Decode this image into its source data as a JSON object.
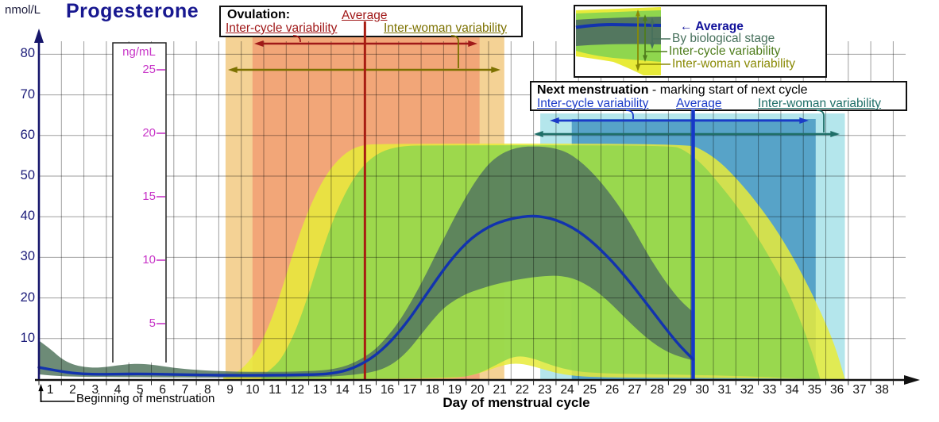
{
  "title": "Progesterone",
  "y_axis_unit": "nmol/L",
  "x_axis_label": "Day of menstrual cycle",
  "beginning_label": "Beginning of menstruation",
  "ovulation_box": {
    "title": "Ovulation:",
    "average_label": "Average",
    "inter_cycle_label": "Inter-cycle variability",
    "inter_woman_label": "Inter-woman variability"
  },
  "next_box": {
    "title": "Next menstruation",
    "subtitle": " - marking start of next cycle",
    "inter_cycle_label": "Inter-cycle variability",
    "average_label": "Average",
    "inter_woman_label": "Inter-woman variability"
  },
  "legend": {
    "items": [
      {
        "label": "Average",
        "color": "#10109A"
      },
      {
        "label": "By biological stage",
        "color": "#47705C"
      },
      {
        "label": "Inter-cycle variability",
        "color": "#4F7D1C"
      },
      {
        "label": "Inter-woman variability",
        "color": "#8A8A06"
      }
    ],
    "average_arrow": "← "
  },
  "colors": {
    "grid": "rgba(0,0,0,0.38)",
    "axis_x": "#111111",
    "axis_y": "#16166B",
    "y_tick_text": "#1A1A78",
    "ng_text": "#C837C8",
    "ovulation_outer_band": "#F4D295",
    "ovulation_inner_band": "#F2A678",
    "next_outer_band": "#B4E6EC",
    "next_inner_band": "#57A3C8",
    "inter_woman_band": "#E8EB39",
    "inter_cycle_band": "#8FD64E",
    "stage_band": "#53775F",
    "average_line": "#1233AE",
    "ovulation_line": "#A81D12",
    "ovulation_text": "#A01818",
    "ovulation_woman_text": "#7C7100",
    "next_line": "#1638C8",
    "next_text_blue": "#1B3BC8",
    "next_text_teal": "#1F6F68"
  },
  "chart_data": {
    "type": "area",
    "title": "Progesterone",
    "x_axis": {
      "label": "Day of menstrual cycle",
      "min": 0.5,
      "max": 38.5,
      "tick_days": [
        1,
        2,
        3,
        4,
        5,
        6,
        7,
        8,
        9,
        10,
        11,
        12,
        13,
        14,
        15,
        16,
        17,
        18,
        19,
        20,
        21,
        22,
        23,
        24,
        25,
        26,
        27,
        28,
        29,
        30,
        31,
        32,
        33,
        34,
        35,
        36,
        37,
        38
      ]
    },
    "y_axis": {
      "unit": "nmol/L",
      "ticks": [
        10,
        20,
        30,
        40,
        50,
        60,
        70,
        80
      ],
      "max": 80
    },
    "y_axis_secondary": {
      "unit": "ng/mL",
      "ticks": [
        5,
        10,
        15,
        20,
        25
      ]
    },
    "series": {
      "average": [
        [
          0.5,
          2.9
        ],
        [
          1,
          2.4
        ],
        [
          1.5,
          1.9
        ],
        [
          2,
          1.5
        ],
        [
          2.5,
          1.3
        ],
        [
          3,
          1.2
        ],
        [
          4,
          1.25
        ],
        [
          5,
          1.3
        ],
        [
          6,
          1.2
        ],
        [
          7,
          1.1
        ],
        [
          8,
          1
        ],
        [
          9,
          0.95
        ],
        [
          10,
          0.95
        ],
        [
          11,
          1
        ],
        [
          12,
          1.05
        ],
        [
          13,
          1.2
        ],
        [
          13.5,
          1.4
        ],
        [
          14,
          1.9
        ],
        [
          14.5,
          2.8
        ],
        [
          15,
          4.2
        ],
        [
          15.5,
          6
        ],
        [
          16,
          8.5
        ],
        [
          16.5,
          11.5
        ],
        [
          17,
          15
        ],
        [
          17.5,
          19
        ],
        [
          18,
          23
        ],
        [
          18.5,
          27
        ],
        [
          19,
          30.5
        ],
        [
          19.5,
          33.5
        ],
        [
          20,
          35.8
        ],
        [
          20.5,
          37.5
        ],
        [
          21,
          38.7
        ],
        [
          21.5,
          39.5
        ],
        [
          22,
          40
        ],
        [
          22.5,
          40.2
        ],
        [
          23,
          39.9
        ],
        [
          23.5,
          39.2
        ],
        [
          24,
          38
        ],
        [
          24.5,
          36.4
        ],
        [
          25,
          34.3
        ],
        [
          25.5,
          31.8
        ],
        [
          26,
          29
        ],
        [
          26.5,
          25.8
        ],
        [
          27,
          22.4
        ],
        [
          27.5,
          18.8
        ],
        [
          28,
          15.2
        ],
        [
          28.5,
          11.6
        ],
        [
          29,
          8.2
        ],
        [
          29.6,
          4.9
        ]
      ],
      "by_biological_stage": {
        "upper": [
          [
            0.5,
            9.5
          ],
          [
            1,
            7.5
          ],
          [
            1.5,
            5
          ],
          [
            2,
            3.6
          ],
          [
            2.5,
            3
          ],
          [
            3,
            2.8
          ],
          [
            3.5,
            3
          ],
          [
            4,
            3.4
          ],
          [
            4.5,
            3.7
          ],
          [
            5,
            3.8
          ],
          [
            5.5,
            3.6
          ],
          [
            6,
            3.2
          ],
          [
            6.5,
            2.8
          ],
          [
            7,
            2.5
          ],
          [
            7.5,
            2.3
          ],
          [
            8,
            2.1
          ],
          [
            9,
            1.9
          ],
          [
            10,
            1.8
          ],
          [
            11,
            1.8
          ],
          [
            12,
            1.9
          ],
          [
            13,
            2.1
          ],
          [
            13.5,
            2.4
          ],
          [
            14,
            3
          ],
          [
            14.5,
            4
          ],
          [
            15,
            5.5
          ],
          [
            15.5,
            7.5
          ],
          [
            16,
            10.5
          ],
          [
            16.5,
            14
          ],
          [
            17,
            18.5
          ],
          [
            17.5,
            23.5
          ],
          [
            18,
            29
          ],
          [
            18.5,
            34.5
          ],
          [
            19,
            40
          ],
          [
            19.5,
            45
          ],
          [
            20,
            49.5
          ],
          [
            20.5,
            53
          ],
          [
            21,
            55.3
          ],
          [
            21.5,
            56.6
          ],
          [
            22,
            57.2
          ],
          [
            22.5,
            57.3
          ],
          [
            23,
            57.2
          ],
          [
            23.5,
            56.8
          ],
          [
            24,
            55.8
          ],
          [
            24.5,
            54
          ],
          [
            25,
            51.5
          ],
          [
            25.5,
            48.5
          ],
          [
            26,
            45
          ],
          [
            26.5,
            41
          ],
          [
            27,
            36.5
          ],
          [
            27.5,
            31.5
          ],
          [
            28,
            27
          ],
          [
            28.5,
            23
          ],
          [
            29,
            19.5
          ],
          [
            29.6,
            16.5
          ]
        ],
        "lower": [
          [
            0.5,
            1.2
          ],
          [
            1,
            0.9
          ],
          [
            2,
            0.6
          ],
          [
            4,
            0.5
          ],
          [
            6,
            0.45
          ],
          [
            8,
            0.4
          ],
          [
            10,
            0.4
          ],
          [
            12,
            0.45
          ],
          [
            13,
            0.5
          ],
          [
            14,
            0.8
          ],
          [
            15,
            1.4
          ],
          [
            15.5,
            2
          ],
          [
            16,
            3
          ],
          [
            16.5,
            4.8
          ],
          [
            17,
            7.5
          ],
          [
            17.5,
            11
          ],
          [
            18,
            14.5
          ],
          [
            18.5,
            17.5
          ],
          [
            19,
            19.5
          ],
          [
            19.5,
            21
          ],
          [
            20,
            22
          ],
          [
            20.5,
            22.9
          ],
          [
            21,
            23.6
          ],
          [
            21.5,
            24.2
          ],
          [
            22,
            24.7
          ],
          [
            22.5,
            25.1
          ],
          [
            23,
            25.4
          ],
          [
            23.5,
            25.5
          ],
          [
            24,
            25.2
          ],
          [
            24.5,
            24.3
          ],
          [
            25,
            22.8
          ],
          [
            25.5,
            20.8
          ],
          [
            26,
            18.3
          ],
          [
            26.5,
            15.5
          ],
          [
            27,
            12.8
          ],
          [
            27.5,
            10.3
          ],
          [
            28,
            8.2
          ],
          [
            28.5,
            6.6
          ],
          [
            29,
            5.5
          ],
          [
            29.6,
            4.6
          ]
        ]
      },
      "inter_cycle_variability": {
        "upper": [
          [
            10.4,
            0.8
          ],
          [
            11,
            3
          ],
          [
            11.5,
            7
          ],
          [
            12,
            13
          ],
          [
            12.5,
            21
          ],
          [
            13,
            30
          ],
          [
            13.5,
            38
          ],
          [
            14,
            44.5
          ],
          [
            14.5,
            49.5
          ],
          [
            15,
            53
          ],
          [
            15.5,
            55.3
          ],
          [
            16,
            56.6
          ],
          [
            16.7,
            57.4
          ],
          [
            17.5,
            57.6
          ],
          [
            28.6,
            57.6
          ],
          [
            29.2,
            56.5
          ],
          [
            30,
            53
          ],
          [
            30.7,
            48.5
          ],
          [
            31.5,
            43
          ],
          [
            32.3,
            36.5
          ],
          [
            33,
            30
          ],
          [
            33.7,
            23
          ],
          [
            34.3,
            15.5
          ],
          [
            34.8,
            8
          ],
          [
            35.1,
            3
          ],
          [
            35.25,
            0
          ]
        ],
        "lower": [
          [
            10.4,
            0
          ],
          [
            19,
            0.2
          ],
          [
            20,
            1.2
          ],
          [
            20.8,
            3.4
          ],
          [
            21.5,
            5.4
          ],
          [
            22,
            5.7
          ],
          [
            22.6,
            4.9
          ],
          [
            23.4,
            3.2
          ],
          [
            24.2,
            2.1
          ],
          [
            25,
            1.6
          ],
          [
            26.5,
            1.3
          ],
          [
            28,
            1.2
          ],
          [
            30,
            1
          ],
          [
            32,
            0.7
          ],
          [
            33.5,
            0.4
          ],
          [
            35.25,
            0
          ]
        ]
      },
      "inter_woman_variability": {
        "upper": [
          [
            8.7,
            0.5
          ],
          [
            9.3,
            1.5
          ],
          [
            9.8,
            4
          ],
          [
            10.3,
            8
          ],
          [
            10.8,
            14
          ],
          [
            11.3,
            22
          ],
          [
            11.8,
            31
          ],
          [
            12.3,
            39
          ],
          [
            12.8,
            45.5
          ],
          [
            13.3,
            50.5
          ],
          [
            13.8,
            54
          ],
          [
            14.3,
            56.3
          ],
          [
            14.8,
            57.5
          ],
          [
            15.5,
            58
          ],
          [
            29.3,
            58
          ],
          [
            30,
            56.5
          ],
          [
            30.8,
            53.5
          ],
          [
            31.6,
            49
          ],
          [
            32.5,
            43
          ],
          [
            33.4,
            36
          ],
          [
            34.3,
            27.5
          ],
          [
            35.2,
            17.5
          ],
          [
            35.9,
            8.5
          ],
          [
            36.35,
            0
          ]
        ],
        "lower": [
          [
            8.7,
            0
          ],
          [
            18.5,
            0.1
          ],
          [
            19.5,
            0.6
          ],
          [
            20.3,
            1.8
          ],
          [
            21,
            3.2
          ],
          [
            21.6,
            3.9
          ],
          [
            22.2,
            3.6
          ],
          [
            23,
            2.3
          ],
          [
            23.8,
            1.1
          ],
          [
            25,
            0.5
          ],
          [
            27,
            0.4
          ],
          [
            30,
            0.3
          ],
          [
            33,
            0.15
          ],
          [
            36.35,
            0
          ]
        ]
      }
    },
    "events": {
      "ovulation": {
        "average_day": 15,
        "inter_cycle_range": [
          10,
          20.1
        ],
        "inter_woman_range": [
          8.8,
          21.2
        ]
      },
      "next_menstruation": {
        "average_day": 29.6,
        "inter_cycle_range": [
          24.2,
          35.05
        ],
        "inter_woman_range": [
          22.8,
          36.35
        ]
      }
    }
  }
}
